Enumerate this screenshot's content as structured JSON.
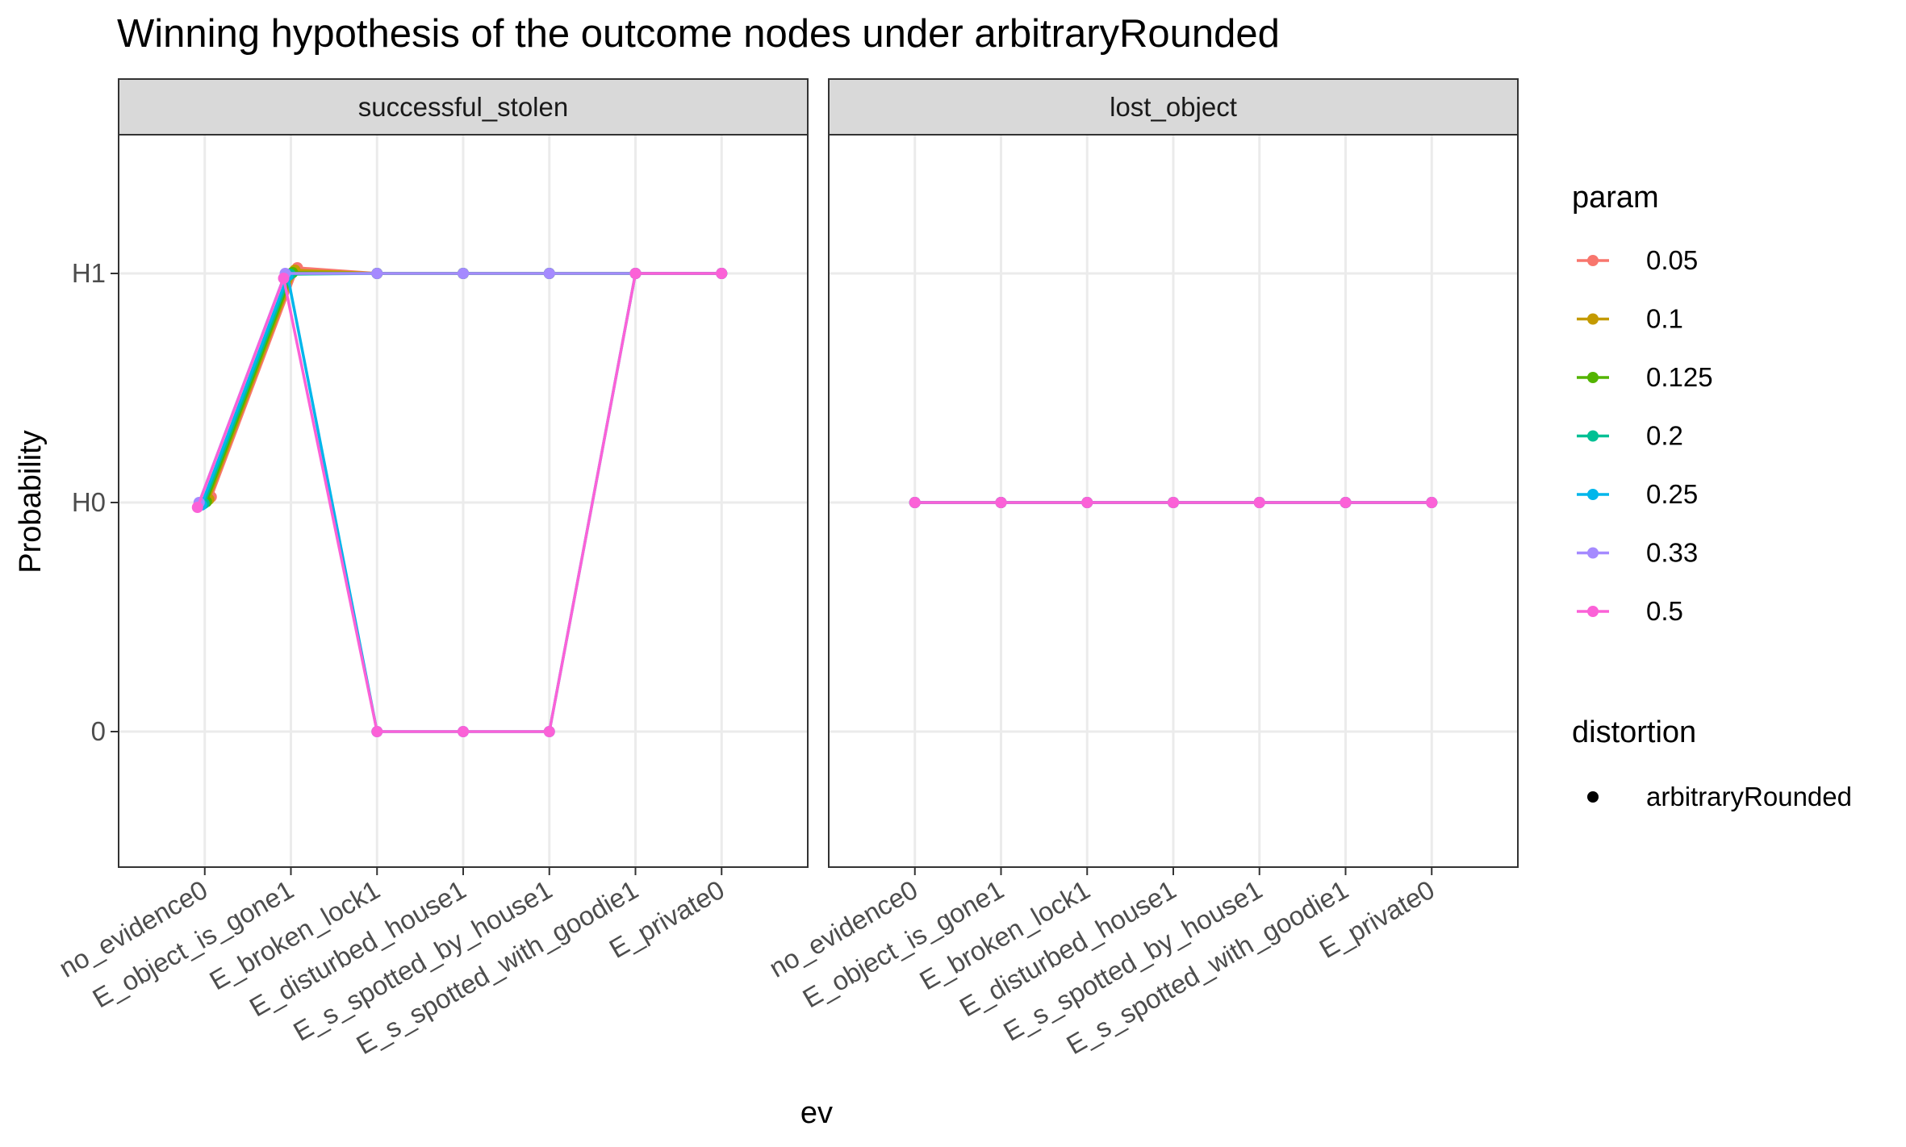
{
  "chart_data": {
    "type": "line",
    "title": "Winning hypothesis of the outcome nodes under arbitraryRounded",
    "xlabel": "ev",
    "ylabel": "Probability",
    "categories": [
      "no_evidence0",
      "E_object_is_gone1",
      "E_broken_lock1",
      "E_disturbed_house1",
      "E_s_spotted_by_house1",
      "E_s_spotted_with_goodie1",
      "E_private0"
    ],
    "y_levels": [
      "0",
      "H0",
      "H1"
    ],
    "ylim": [
      -0.6,
      2.6
    ],
    "grid": true,
    "legend_position": "right",
    "legends": {
      "param": {
        "title": "param",
        "entries": [
          {
            "label": "0.05",
            "color": "#F8766D"
          },
          {
            "label": "0.1",
            "color": "#C49A00"
          },
          {
            "label": "0.125",
            "color": "#53B400"
          },
          {
            "label": "0.2",
            "color": "#00C094"
          },
          {
            "label": "0.25",
            "color": "#00B6EB"
          },
          {
            "label": "0.33",
            "color": "#A58AFF"
          },
          {
            "label": "0.5",
            "color": "#FB61D7"
          }
        ]
      },
      "distortion": {
        "title": "distortion",
        "entries": [
          {
            "label": "arbitraryRounded",
            "color": "#000000"
          }
        ]
      }
    },
    "panels": [
      {
        "strip": "successful_stolen",
        "series": [
          {
            "param": "0.05",
            "color": "#F8766D",
            "values": [
              "H0",
              "H1",
              "H1",
              "H1",
              "H1",
              "H1",
              "H1"
            ]
          },
          {
            "param": "0.1",
            "color": "#C49A00",
            "values": [
              "H0",
              "H1",
              "H1",
              "H1",
              "H1",
              "H1",
              "H1"
            ]
          },
          {
            "param": "0.125",
            "color": "#53B400",
            "values": [
              "H0",
              "H1",
              "H1",
              "H1",
              "H1",
              "H1",
              "H1"
            ]
          },
          {
            "param": "0.2",
            "color": "#00C094",
            "values": [
              "H0",
              "H1",
              "H1",
              "H1",
              "H1",
              "H1",
              "H1"
            ]
          },
          {
            "param": "0.25",
            "color": "#00B6EB",
            "values": [
              "H0",
              "H1",
              "0",
              "0",
              "0",
              "H1",
              "H1"
            ]
          },
          {
            "param": "0.33",
            "color": "#A58AFF",
            "values": [
              "H0",
              "H1",
              "H1",
              "H1",
              "H1",
              "H1",
              "H1"
            ]
          },
          {
            "param": "0.5",
            "color": "#FB61D7",
            "values": [
              "H0",
              "H1",
              "0",
              "0",
              "0",
              "H1",
              "H1"
            ]
          }
        ]
      },
      {
        "strip": "lost_object",
        "series": [
          {
            "param": "0.05",
            "color": "#F8766D",
            "values": [
              "H0",
              "H0",
              "H0",
              "H0",
              "H0",
              "H0",
              "H0"
            ]
          },
          {
            "param": "0.1",
            "color": "#C49A00",
            "values": [
              "H0",
              "H0",
              "H0",
              "H0",
              "H0",
              "H0",
              "H0"
            ]
          },
          {
            "param": "0.125",
            "color": "#53B400",
            "values": [
              "H0",
              "H0",
              "H0",
              "H0",
              "H0",
              "H0",
              "H0"
            ]
          },
          {
            "param": "0.2",
            "color": "#00C094",
            "values": [
              "H0",
              "H0",
              "H0",
              "H0",
              "H0",
              "H0",
              "H0"
            ]
          },
          {
            "param": "0.25",
            "color": "#00B6EB",
            "values": [
              "H0",
              "H0",
              "H0",
              "H0",
              "H0",
              "H0",
              "H0"
            ]
          },
          {
            "param": "0.33",
            "color": "#A58AFF",
            "values": [
              "H0",
              "H0",
              "H0",
              "H0",
              "H0",
              "H0",
              "H0"
            ]
          },
          {
            "param": "0.5",
            "color": "#FB61D7",
            "values": [
              "H0",
              "H0",
              "H0",
              "H0",
              "H0",
              "H0",
              "H0"
            ]
          }
        ]
      }
    ]
  }
}
